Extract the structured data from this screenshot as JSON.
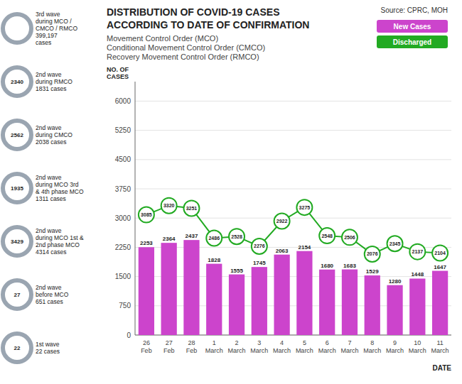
{
  "chart_data": {
    "type": "bar",
    "title": "DISTRIBUTION OF COVID-19 CASES\nACCORDING TO DATE OF CONFIRMATION",
    "subtitle": "Movement Control Order (MCO)\nConditional Movement Control Order (CMCO)\nRecovery Movement Control Order (RMCO)",
    "source": "Source: CPRC, MOH",
    "xlabel": "DATE",
    "ylabel": "NO. OF\nCASES",
    "categories": [
      "26\nFeb",
      "27\nFeb",
      "28\nFeb",
      "1\nMarch",
      "2\nMarch",
      "3\nMarch",
      "4\nMarch",
      "5\nMarch",
      "6\nMarch",
      "7\nMarch",
      "8\nMarch",
      "9\nMarch",
      "10\nMarch",
      "11\nMarch"
    ],
    "series": [
      {
        "name": "New Cases",
        "type": "bar",
        "color": "#cc44cc",
        "values": [
          2253,
          2364,
          2437,
          1828,
          1555,
          1745,
          2063,
          2154,
          1680,
          1683,
          1529,
          1280,
          1448,
          1647
        ]
      },
      {
        "name": "Discharged",
        "type": "line",
        "color": "#22aa22",
        "marker": "circle",
        "values": [
          3085,
          3320,
          3251,
          2486,
          2528,
          2276,
          2922,
          3275,
          2548,
          2506,
          2076,
          2345,
          2137,
          2104
        ]
      }
    ],
    "ylim": [
      0,
      6500
    ],
    "yticks": [
      0,
      750,
      1500,
      2250,
      3000,
      3750,
      4500,
      5250,
      6000
    ],
    "grid": true,
    "legend": "upper right",
    "data_labels": true,
    "annotations": [
      {
        "text": "3rd wave\nduring MCO /\nCMCO / RMCO\n399,197\ncases"
      },
      {
        "text": "2nd wave\nduring RMCO\n1831 cases",
        "value": 2340
      },
      {
        "text": "2nd wave\nduring CMCO\n2038 cases",
        "value": 2562
      },
      {
        "text": "2nd wave\nduring MCO 3rd\n& 4th phase MCO\n1311 cases",
        "value": 1935
      },
      {
        "text": "2nd wave\nduring MCO 1st &\n2nd phase MCO\n4314 cases",
        "value": 3429
      },
      {
        "text": "2nd wave\nbefore MCO\n651 cases",
        "value": 27
      },
      {
        "text": "1st wave\n22 cases",
        "value": 22
      }
    ]
  }
}
